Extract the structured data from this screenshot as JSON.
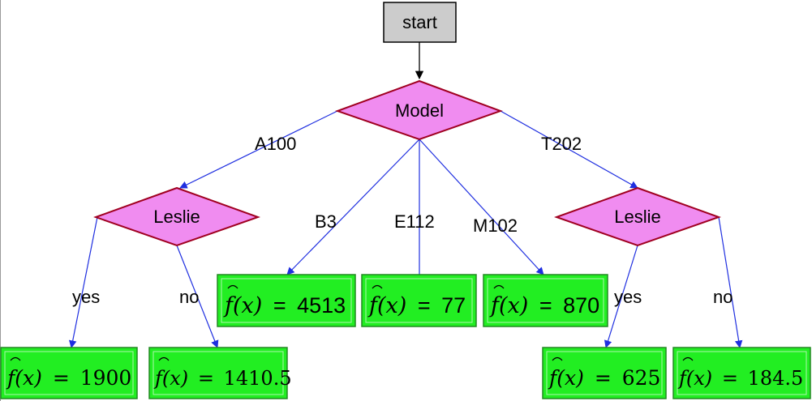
{
  "colors": {
    "edge": "#1f2fe0",
    "start_fill": "#cccccc",
    "decision_fill": "#f08cf0",
    "decision_stroke": "#a00020",
    "leaf_fill": "#22ee22",
    "leaf_stroke": "#228822"
  },
  "nodes": {
    "start": "start",
    "model": "Model",
    "leslie_left": "Leslie",
    "leslie_right": "Leslie"
  },
  "edge_labels": {
    "a100": "A100",
    "b3": "B3",
    "e112": "E112",
    "m102": "M102",
    "t202": "T202",
    "left_yes": "yes",
    "left_no": "no",
    "right_yes": "yes",
    "right_no": "no"
  },
  "leaves": {
    "fx_text": "f(x)",
    "equals": "=",
    "b3": "4513",
    "e112": "77",
    "m102": "870",
    "left_yes": "1900",
    "left_no": "1410.5",
    "right_yes": "625",
    "right_no": "184.5"
  }
}
